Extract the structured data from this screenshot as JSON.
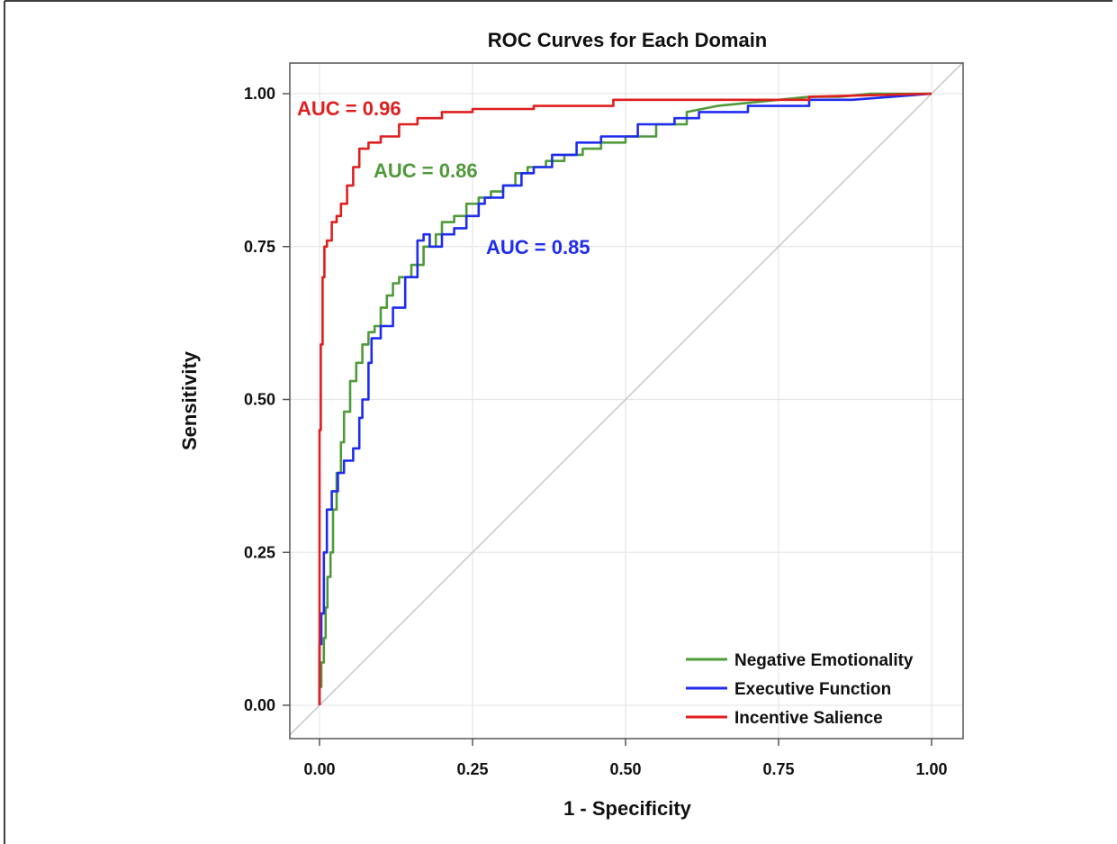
{
  "chart_data": {
    "type": "line",
    "title": "ROC Curves for Each Domain",
    "xlabel": "1 - Specificity",
    "ylabel": "Sensitivity",
    "xlim": [
      0,
      1
    ],
    "ylim": [
      0,
      1
    ],
    "xticks": [
      "0.00",
      "0.25",
      "0.50",
      "0.75",
      "1.00"
    ],
    "yticks": [
      "0.00",
      "0.25",
      "0.50",
      "0.75",
      "1.00"
    ],
    "xtick_values": [
      0,
      0.25,
      0.5,
      0.75,
      1
    ],
    "ytick_values": [
      0,
      0.25,
      0.5,
      0.75,
      1
    ],
    "grid": true,
    "legend_position": "bottom-right",
    "reference_line": {
      "x": [
        0,
        1
      ],
      "y": [
        0,
        1
      ],
      "color": "#c8c8c8"
    },
    "series": [
      {
        "name": "Negative Emotionality",
        "color": "#4f9a3a",
        "auc_label": "AUC = 0.86",
        "x": [
          0,
          0,
          0.003,
          0.003,
          0.007,
          0.007,
          0.01,
          0.01,
          0.013,
          0.013,
          0.018,
          0.018,
          0.022,
          0.022,
          0.028,
          0.028,
          0.035,
          0.035,
          0.04,
          0.04,
          0.05,
          0.05,
          0.06,
          0.06,
          0.07,
          0.07,
          0.08,
          0.08,
          0.09,
          0.09,
          0.1,
          0.1,
          0.11,
          0.11,
          0.12,
          0.12,
          0.13,
          0.13,
          0.15,
          0.15,
          0.17,
          0.17,
          0.19,
          0.19,
          0.2,
          0.2,
          0.22,
          0.22,
          0.24,
          0.24,
          0.26,
          0.26,
          0.28,
          0.28,
          0.3,
          0.3,
          0.32,
          0.32,
          0.34,
          0.34,
          0.37,
          0.37,
          0.4,
          0.4,
          0.43,
          0.43,
          0.46,
          0.46,
          0.5,
          0.5,
          0.55,
          0.55,
          0.6,
          0.6,
          0.65,
          0.7,
          0.75,
          0.8,
          0.85,
          0.9,
          1
        ],
        "y": [
          0,
          0.03,
          0.03,
          0.07,
          0.07,
          0.11,
          0.11,
          0.16,
          0.16,
          0.21,
          0.21,
          0.25,
          0.25,
          0.32,
          0.32,
          0.38,
          0.38,
          0.43,
          0.43,
          0.48,
          0.48,
          0.53,
          0.53,
          0.56,
          0.56,
          0.59,
          0.59,
          0.61,
          0.61,
          0.62,
          0.62,
          0.65,
          0.65,
          0.67,
          0.67,
          0.69,
          0.69,
          0.7,
          0.7,
          0.72,
          0.72,
          0.75,
          0.75,
          0.77,
          0.77,
          0.79,
          0.79,
          0.8,
          0.8,
          0.82,
          0.82,
          0.83,
          0.83,
          0.84,
          0.84,
          0.85,
          0.85,
          0.87,
          0.87,
          0.88,
          0.88,
          0.89,
          0.89,
          0.9,
          0.9,
          0.91,
          0.91,
          0.92,
          0.92,
          0.93,
          0.93,
          0.95,
          0.95,
          0.97,
          0.98,
          0.985,
          0.99,
          0.995,
          0.995,
          1,
          1
        ]
      },
      {
        "name": "Executive Function",
        "color": "#1f2cf0",
        "auc_label": "AUC = 0.85",
        "x": [
          0,
          0,
          0.003,
          0.003,
          0.007,
          0.007,
          0.012,
          0.012,
          0.02,
          0.02,
          0.03,
          0.03,
          0.04,
          0.04,
          0.055,
          0.055,
          0.065,
          0.065,
          0.07,
          0.07,
          0.08,
          0.08,
          0.085,
          0.085,
          0.1,
          0.1,
          0.12,
          0.12,
          0.14,
          0.14,
          0.16,
          0.16,
          0.17,
          0.17,
          0.18,
          0.18,
          0.2,
          0.2,
          0.22,
          0.22,
          0.24,
          0.24,
          0.26,
          0.26,
          0.27,
          0.27,
          0.3,
          0.3,
          0.33,
          0.33,
          0.35,
          0.35,
          0.38,
          0.38,
          0.42,
          0.42,
          0.46,
          0.46,
          0.52,
          0.52,
          0.58,
          0.58,
          0.62,
          0.62,
          0.7,
          0.7,
          0.8,
          0.8,
          0.87,
          1
        ],
        "y": [
          0,
          0.1,
          0.1,
          0.15,
          0.15,
          0.25,
          0.25,
          0.32,
          0.32,
          0.35,
          0.35,
          0.38,
          0.38,
          0.4,
          0.4,
          0.42,
          0.42,
          0.47,
          0.47,
          0.5,
          0.5,
          0.56,
          0.56,
          0.6,
          0.6,
          0.62,
          0.62,
          0.65,
          0.65,
          0.7,
          0.7,
          0.76,
          0.76,
          0.77,
          0.77,
          0.75,
          0.75,
          0.77,
          0.77,
          0.78,
          0.78,
          0.8,
          0.8,
          0.82,
          0.82,
          0.83,
          0.83,
          0.85,
          0.85,
          0.87,
          0.87,
          0.88,
          0.88,
          0.9,
          0.9,
          0.92,
          0.92,
          0.93,
          0.93,
          0.95,
          0.95,
          0.96,
          0.96,
          0.97,
          0.97,
          0.98,
          0.98,
          0.99,
          0.99,
          1
        ]
      },
      {
        "name": "Incentive Salience",
        "color": "#e01e1e",
        "auc_label": "AUC = 0.96",
        "x": [
          0,
          0,
          0.002,
          0.002,
          0.005,
          0.005,
          0.008,
          0.008,
          0.012,
          0.012,
          0.02,
          0.02,
          0.028,
          0.028,
          0.035,
          0.035,
          0.045,
          0.045,
          0.055,
          0.055,
          0.065,
          0.065,
          0.08,
          0.08,
          0.1,
          0.1,
          0.13,
          0.13,
          0.16,
          0.16,
          0.2,
          0.2,
          0.25,
          0.25,
          0.35,
          0.35,
          0.48,
          0.48,
          0.8,
          0.8,
          1
        ],
        "y": [
          0,
          0.45,
          0.45,
          0.59,
          0.59,
          0.7,
          0.7,
          0.75,
          0.75,
          0.76,
          0.76,
          0.79,
          0.79,
          0.8,
          0.8,
          0.82,
          0.82,
          0.85,
          0.85,
          0.88,
          0.88,
          0.91,
          0.91,
          0.92,
          0.92,
          0.93,
          0.93,
          0.95,
          0.95,
          0.96,
          0.96,
          0.97,
          0.97,
          0.975,
          0.975,
          0.98,
          0.98,
          0.99,
          0.99,
          0.995,
          1
        ]
      }
    ]
  }
}
